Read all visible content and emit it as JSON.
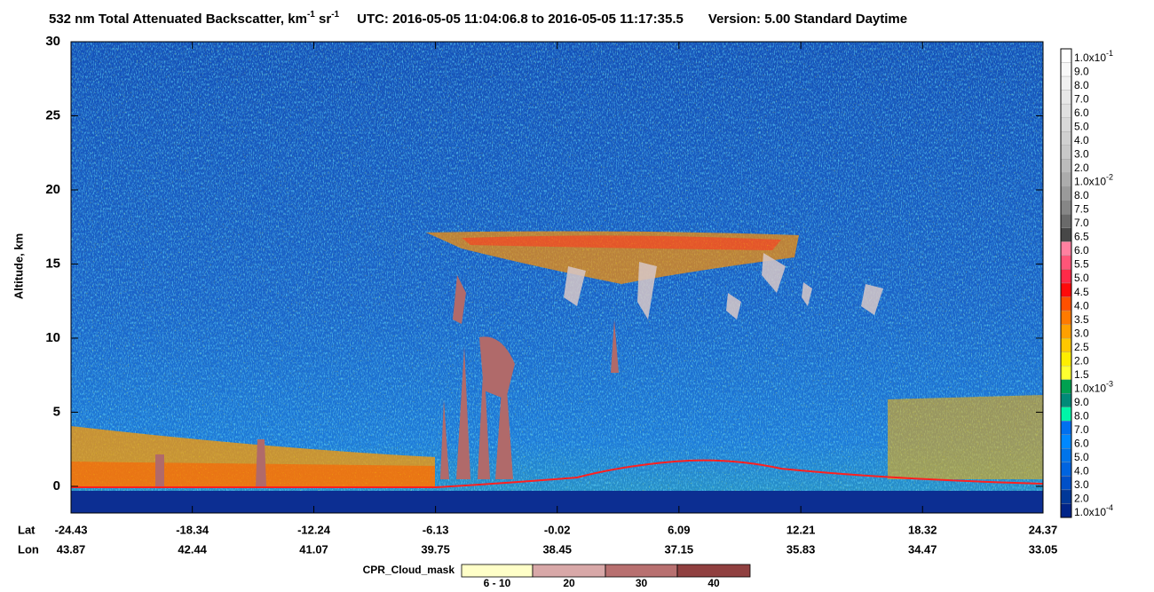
{
  "chart_data": {
    "type": "curtain",
    "title_parts": [
      "532 nm Total Attenuated Backscatter, km",
      "-1",
      " sr",
      "-1",
      "UTC:  2016-05-05 11:04:06.8  to  2016-05-05 11:17:35.5",
      "Version: 5.00  Standard  Daytime"
    ],
    "ylabel": "Altitude, km",
    "ylim": [
      -1.8,
      30
    ],
    "yticks": [
      0,
      5,
      10,
      15,
      20,
      25,
      30
    ],
    "x_row_labels": [
      "Lat",
      "Lon"
    ],
    "xlim": [
      -24.43,
      24.37
    ],
    "xticks": [
      -24.43,
      -18.34,
      -12.24,
      -6.13,
      -0.02,
      6.09,
      12.21,
      18.32,
      24.37
    ],
    "lon_ticks": [
      43.87,
      42.44,
      41.07,
      39.75,
      38.45,
      37.15,
      35.83,
      34.47,
      33.05
    ],
    "colorbar": [
      {
        "label": "1.0x10",
        "sup": "-1",
        "color": "#ffffff"
      },
      {
        "label": "9.0",
        "color": "#f8f8f8"
      },
      {
        "label": "8.0",
        "color": "#f0f0f0"
      },
      {
        "label": "7.0",
        "color": "#e8e8e8"
      },
      {
        "label": "6.0",
        "color": "#e0e0e0"
      },
      {
        "label": "5.0",
        "color": "#d8d8d8"
      },
      {
        "label": "4.0",
        "color": "#d0d0d0"
      },
      {
        "label": "3.0",
        "color": "#c8c8c8"
      },
      {
        "label": "2.0",
        "color": "#bcbcbc"
      },
      {
        "label": "1.0x10",
        "sup": "-2",
        "color": "#acacac"
      },
      {
        "label": "8.0",
        "color": "#9a9a9a"
      },
      {
        "label": "7.5",
        "color": "#868686"
      },
      {
        "label": "7.0",
        "color": "#6a6a6a"
      },
      {
        "label": "6.5",
        "color": "#474747"
      },
      {
        "label": "6.0",
        "color": "#ff80a0"
      },
      {
        "label": "5.5",
        "color": "#ff5578"
      },
      {
        "label": "5.0",
        "color": "#ff2a48"
      },
      {
        "label": "4.5",
        "color": "#ff0a0a"
      },
      {
        "label": "4.0",
        "color": "#ff5000"
      },
      {
        "label": "3.5",
        "color": "#ff7a00"
      },
      {
        "label": "3.0",
        "color": "#ffa000"
      },
      {
        "label": "2.5",
        "color": "#ffc800"
      },
      {
        "label": "2.0",
        "color": "#ffee00"
      },
      {
        "label": "1.5",
        "color": "#ffff30"
      },
      {
        "label": "1.0x10",
        "sup": "-3",
        "color": "#00a050"
      },
      {
        "label": "9.0",
        "color": "#008a78"
      },
      {
        "label": "8.0",
        "color": "#00f5a8"
      },
      {
        "label": "7.0",
        "color": "#0070f0"
      },
      {
        "label": "6.0",
        "color": "#0088ff"
      },
      {
        "label": "5.0",
        "color": "#0074ea"
      },
      {
        "label": "4.0",
        "color": "#0064e0"
      },
      {
        "label": "3.0",
        "color": "#0050c8"
      },
      {
        "label": "2.0",
        "color": "#003898"
      },
      {
        "label": "1.0x10",
        "sup": "-4",
        "color": "#002488"
      }
    ],
    "cpr_legend_title": "CPR_Cloud_mask",
    "cpr_legend": [
      {
        "label": "6 - 10",
        "color": "#ffffc8"
      },
      {
        "label": "20",
        "color": "#d8a8a8"
      },
      {
        "label": "30",
        "color": "#b87070"
      },
      {
        "label": "40",
        "color": "#904040"
      }
    ]
  }
}
